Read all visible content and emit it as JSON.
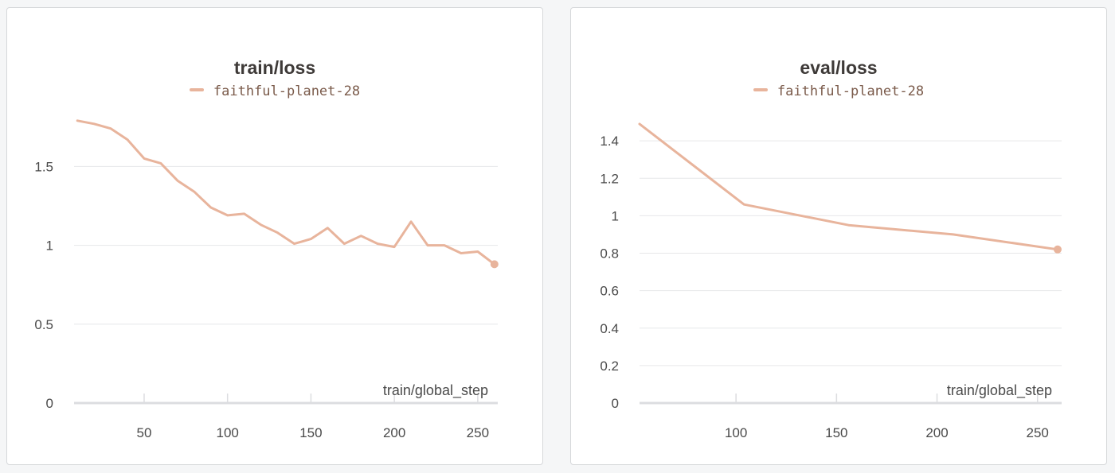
{
  "chart_data": [
    {
      "type": "line",
      "title": "train/loss",
      "xlabel": "train/global_step",
      "ylabel": "",
      "xlim": [
        8,
        262
      ],
      "ylim": [
        0,
        1.9
      ],
      "x_ticks": [
        50,
        100,
        150,
        200,
        250
      ],
      "y_ticks": [
        0,
        0.5,
        1,
        1.5
      ],
      "grid": true,
      "legend_position": "top-center",
      "series": [
        {
          "name": "faithful-planet-28",
          "color": "#e8b49c",
          "x": [
            10,
            20,
            30,
            40,
            50,
            60,
            70,
            80,
            90,
            100,
            110,
            120,
            130,
            140,
            150,
            160,
            170,
            180,
            190,
            200,
            210,
            220,
            230,
            240,
            250,
            260
          ],
          "y": [
            1.79,
            1.77,
            1.74,
            1.67,
            1.55,
            1.52,
            1.41,
            1.34,
            1.24,
            1.19,
            1.2,
            1.13,
            1.08,
            1.01,
            1.04,
            1.11,
            1.01,
            1.06,
            1.01,
            0.99,
            1.15,
            1.0,
            1.0,
            0.95,
            0.96,
            0.88
          ]
        }
      ]
    },
    {
      "type": "line",
      "title": "eval/loss",
      "xlabel": "train/global_step",
      "ylabel": "",
      "xlim": [
        52,
        262
      ],
      "ylim": [
        0,
        1.6
      ],
      "x_ticks": [
        100,
        150,
        200,
        250
      ],
      "y_ticks": [
        0,
        0.2,
        0.4,
        0.6,
        0.8,
        1,
        1.2,
        1.4
      ],
      "grid": true,
      "legend_position": "top-center",
      "series": [
        {
          "name": "faithful-planet-28",
          "color": "#e8b49c",
          "x": [
            52,
            104,
            156,
            208,
            260
          ],
          "y": [
            1.49,
            1.06,
            0.95,
            0.9,
            0.82
          ]
        }
      ]
    }
  ]
}
